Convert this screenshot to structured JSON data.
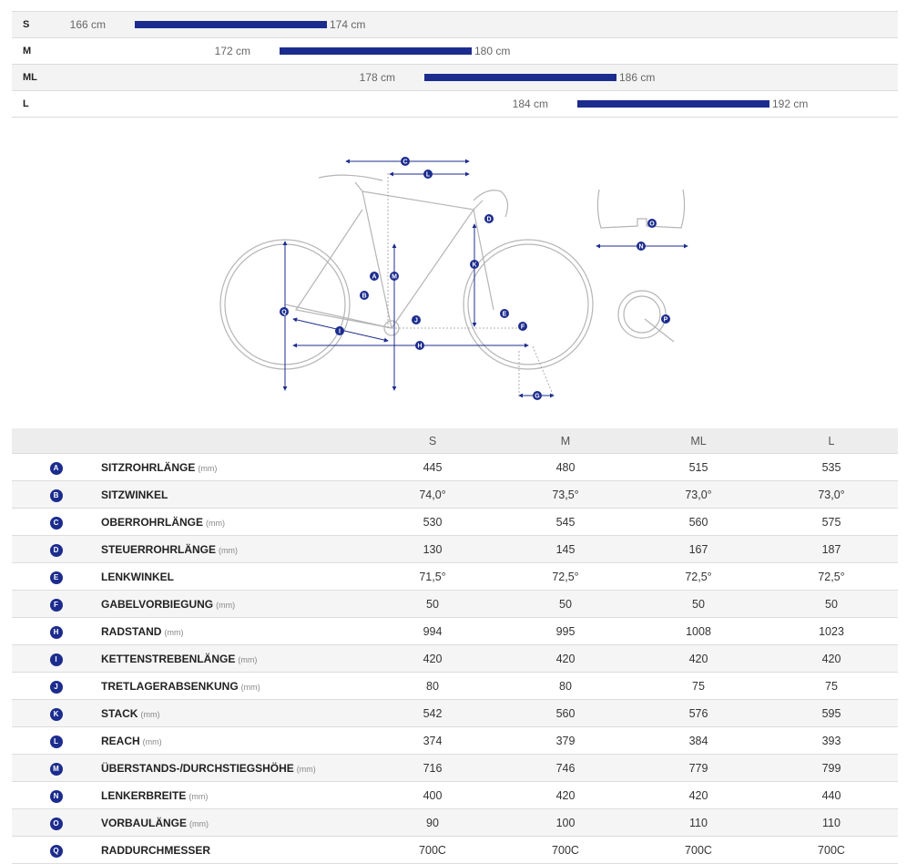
{
  "size_range": [
    {
      "label": "S",
      "min": "166 cm",
      "max": "174 cm"
    },
    {
      "label": "M",
      "min": "172 cm",
      "max": "180 cm"
    },
    {
      "label": "ML",
      "min": "178 cm",
      "max": "186 cm"
    },
    {
      "label": "L",
      "min": "184 cm",
      "max": "192 cm"
    }
  ],
  "diagram_letters": [
    "A",
    "B",
    "C",
    "D",
    "E",
    "F",
    "G",
    "H",
    "I",
    "J",
    "K",
    "L",
    "M",
    "N",
    "O",
    "P",
    "Q"
  ],
  "colors": {
    "accent": "#1c2c8e"
  },
  "table": {
    "sizes": [
      "S",
      "M",
      "ML",
      "L"
    ],
    "rows": [
      {
        "letter": "A",
        "name": "SITZROHRLÄNGE",
        "unit": "(mm)",
        "values": [
          "445",
          "480",
          "515",
          "535"
        ]
      },
      {
        "letter": "B",
        "name": "SITZWINKEL",
        "unit": "",
        "values": [
          "74,0°",
          "73,5°",
          "73,0°",
          "73,0°"
        ]
      },
      {
        "letter": "C",
        "name": "OBERROHRLÄNGE",
        "unit": "(mm)",
        "values": [
          "530",
          "545",
          "560",
          "575"
        ]
      },
      {
        "letter": "D",
        "name": "STEUERROHRLÄNGE",
        "unit": "(mm)",
        "values": [
          "130",
          "145",
          "167",
          "187"
        ]
      },
      {
        "letter": "E",
        "name": "LENKWINKEL",
        "unit": "",
        "values": [
          "71,5°",
          "72,5°",
          "72,5°",
          "72,5°"
        ]
      },
      {
        "letter": "F",
        "name": "GABELVORBIEGUNG",
        "unit": "(mm)",
        "values": [
          "50",
          "50",
          "50",
          "50"
        ]
      },
      {
        "letter": "H",
        "name": "RADSTAND",
        "unit": "(mm)",
        "values": [
          "994",
          "995",
          "1008",
          "1023"
        ]
      },
      {
        "letter": "I",
        "name": "KETTENSTREBENLÄNGE",
        "unit": "(mm)",
        "values": [
          "420",
          "420",
          "420",
          "420"
        ]
      },
      {
        "letter": "J",
        "name": "TRETLAGERABSENKUNG",
        "unit": "(mm)",
        "values": [
          "80",
          "80",
          "75",
          "75"
        ]
      },
      {
        "letter": "K",
        "name": "STACK",
        "unit": "(mm)",
        "values": [
          "542",
          "560",
          "576",
          "595"
        ]
      },
      {
        "letter": "L",
        "name": "REACH",
        "unit": "(mm)",
        "values": [
          "374",
          "379",
          "384",
          "393"
        ]
      },
      {
        "letter": "M",
        "name": "ÜBERSTANDS-/DURCHSTIEGSHÖHE",
        "unit": "(mm)",
        "values": [
          "716",
          "746",
          "779",
          "799"
        ]
      },
      {
        "letter": "N",
        "name": "LENKERBREITE",
        "unit": "(mm)",
        "values": [
          "400",
          "420",
          "420",
          "440"
        ]
      },
      {
        "letter": "O",
        "name": "VORBAULÄNGE",
        "unit": "(mm)",
        "values": [
          "90",
          "100",
          "110",
          "110"
        ]
      },
      {
        "letter": "Q",
        "name": "RADDURCHMESSER",
        "unit": "",
        "values": [
          "700C",
          "700C",
          "700C",
          "700C"
        ]
      }
    ]
  }
}
